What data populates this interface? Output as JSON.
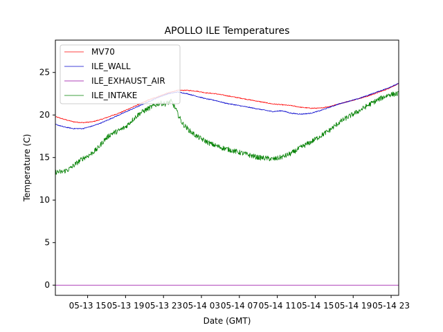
{
  "chart_data": {
    "type": "line",
    "title": "APOLLO ILE Temperatures",
    "xlabel": "Date (GMT)",
    "ylabel": "Temperature (C)",
    "xlim": [
      11.6,
      47.8
    ],
    "ylim": [
      -1.2,
      28.8
    ],
    "x_unit": "hours since 05-13 00:00 GMT",
    "x_ticks": [
      {
        "value": 15,
        "label": "05-13 15"
      },
      {
        "value": 19,
        "label": "05-13 19"
      },
      {
        "value": 23,
        "label": "05-13 23"
      },
      {
        "value": 27,
        "label": "05-14 03"
      },
      {
        "value": 31,
        "label": "05-14 07"
      },
      {
        "value": 35,
        "label": "05-14 11"
      },
      {
        "value": 39,
        "label": "05-14 15"
      },
      {
        "value": 43,
        "label": "05-14 19"
      },
      {
        "value": 47,
        "label": "05-14 23"
      }
    ],
    "y_ticks": [
      {
        "value": 0,
        "label": "0"
      },
      {
        "value": 5,
        "label": "5"
      },
      {
        "value": 10,
        "label": "10"
      },
      {
        "value": 15,
        "label": "15"
      },
      {
        "value": 20,
        "label": "20"
      },
      {
        "value": 25,
        "label": "25"
      }
    ],
    "grid": false,
    "legend_position": "top-left",
    "series": [
      {
        "name": "MV70",
        "color": "#ff0000",
        "noise": 0.05,
        "x": [
          11.6,
          12.5,
          13.5,
          14.5,
          15.5,
          16.5,
          17.5,
          18.5,
          19.5,
          20.5,
          21.5,
          22.5,
          23.5,
          24.5,
          25.5,
          26.5,
          27.5,
          28.5,
          29.5,
          30.5,
          31.5,
          32.5,
          33.5,
          34.5,
          35.5,
          36.5,
          37.5,
          38.5,
          39.5,
          40.5,
          41.5,
          42.5,
          43.5,
          44.5,
          45.5,
          46.5,
          47.8
        ],
        "y": [
          19.8,
          19.5,
          19.2,
          19.1,
          19.2,
          19.5,
          19.9,
          20.3,
          20.8,
          21.3,
          21.8,
          22.2,
          22.6,
          22.9,
          22.9,
          22.8,
          22.6,
          22.5,
          22.3,
          22.1,
          21.9,
          21.7,
          21.5,
          21.3,
          21.2,
          21.1,
          20.9,
          20.8,
          20.8,
          21.0,
          21.3,
          21.6,
          21.9,
          22.2,
          22.6,
          23.0,
          23.7
        ]
      },
      {
        "name": "ILE_WALL",
        "color": "#0000cc",
        "noise": 0.05,
        "x": [
          11.6,
          12.5,
          13.5,
          14.5,
          15.5,
          16.5,
          17.5,
          18.5,
          19.5,
          20.5,
          21.5,
          22.5,
          23.5,
          24.5,
          25.5,
          26.5,
          27.5,
          28.5,
          29.5,
          30.5,
          31.5,
          32.5,
          33.5,
          34.5,
          35.5,
          36.5,
          37.5,
          38.5,
          39.5,
          40.5,
          41.5,
          42.5,
          43.5,
          44.5,
          45.5,
          46.5,
          47.8
        ],
        "y": [
          18.9,
          18.6,
          18.4,
          18.4,
          18.7,
          19.1,
          19.6,
          20.1,
          20.6,
          21.1,
          21.6,
          22.1,
          22.5,
          22.7,
          22.5,
          22.2,
          21.9,
          21.7,
          21.4,
          21.2,
          21.0,
          20.8,
          20.6,
          20.4,
          20.5,
          20.2,
          20.1,
          20.2,
          20.5,
          20.9,
          21.3,
          21.6,
          21.9,
          22.3,
          22.7,
          23.1,
          23.7
        ]
      },
      {
        "name": "ILE_EXHAUST_AIR",
        "color": "#9400a0",
        "noise": 0.0,
        "x": [
          11.6,
          47.8
        ],
        "y": [
          0.0,
          0.0
        ]
      },
      {
        "name": "ILE_INTAKE",
        "color": "#008000",
        "noise": 0.3,
        "x": [
          11.6,
          12.3,
          13.0,
          13.8,
          14.5,
          15.2,
          16.0,
          16.8,
          17.5,
          18.2,
          19.0,
          19.8,
          20.5,
          21.3,
          22.0,
          22.6,
          23.2,
          23.8,
          24.2,
          24.6,
          25.0,
          25.8,
          26.5,
          27.3,
          28.0,
          29.0,
          30.0,
          31.0,
          32.0,
          33.0,
          34.0,
          34.5,
          35.0,
          35.6,
          36.5,
          37.5,
          38.5,
          39.5,
          40.5,
          41.5,
          42.2,
          43.0,
          43.8,
          44.5,
          45.3,
          46.0,
          46.8,
          47.8
        ],
        "y": [
          13.3,
          13.3,
          13.6,
          14.3,
          14.9,
          15.3,
          16.0,
          17.1,
          17.8,
          18.1,
          18.6,
          19.5,
          20.2,
          20.7,
          21.1,
          21.4,
          21.3,
          21.6,
          20.9,
          19.9,
          19.0,
          18.1,
          17.5,
          17.0,
          16.6,
          16.2,
          15.9,
          15.6,
          15.3,
          15.0,
          14.9,
          14.8,
          14.9,
          15.1,
          15.5,
          16.2,
          16.8,
          17.5,
          18.2,
          19.1,
          19.6,
          20.1,
          20.6,
          21.1,
          21.6,
          22.0,
          22.4,
          22.5
        ]
      }
    ]
  }
}
